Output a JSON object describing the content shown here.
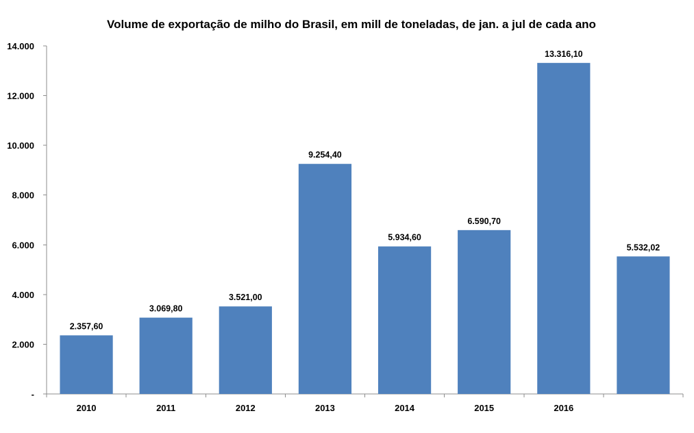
{
  "chart_data": {
    "type": "bar",
    "title": "Volume de exportação de milho do Brasil, em mill de toneladas, de jan. a jul de cada ano",
    "xlabel": "",
    "ylabel": "",
    "categories": [
      "2010",
      "2011",
      "2012",
      "2013",
      "2014",
      "2015",
      "2016",
      ""
    ],
    "values": [
      2357.6,
      3069.8,
      3521.0,
      9254.4,
      5934.6,
      6590.7,
      13316.1,
      5532.02
    ],
    "data_labels": [
      "2.357,60",
      "3.069,80",
      "3.521,00",
      "9.254,40",
      "5.934,60",
      "6.590,70",
      "13.316,10",
      "5.532,02"
    ],
    "ylim": [
      0,
      14000
    ],
    "y_ticks": [
      0,
      2000,
      4000,
      6000,
      8000,
      10000,
      12000,
      14000
    ],
    "y_tick_labels": [
      "-",
      "2.000",
      "4.000",
      "6.000",
      "8.000",
      "10.000",
      "12.000",
      "14.000"
    ],
    "bar_color": "#4f81bd",
    "grid": false,
    "legend": "none"
  }
}
